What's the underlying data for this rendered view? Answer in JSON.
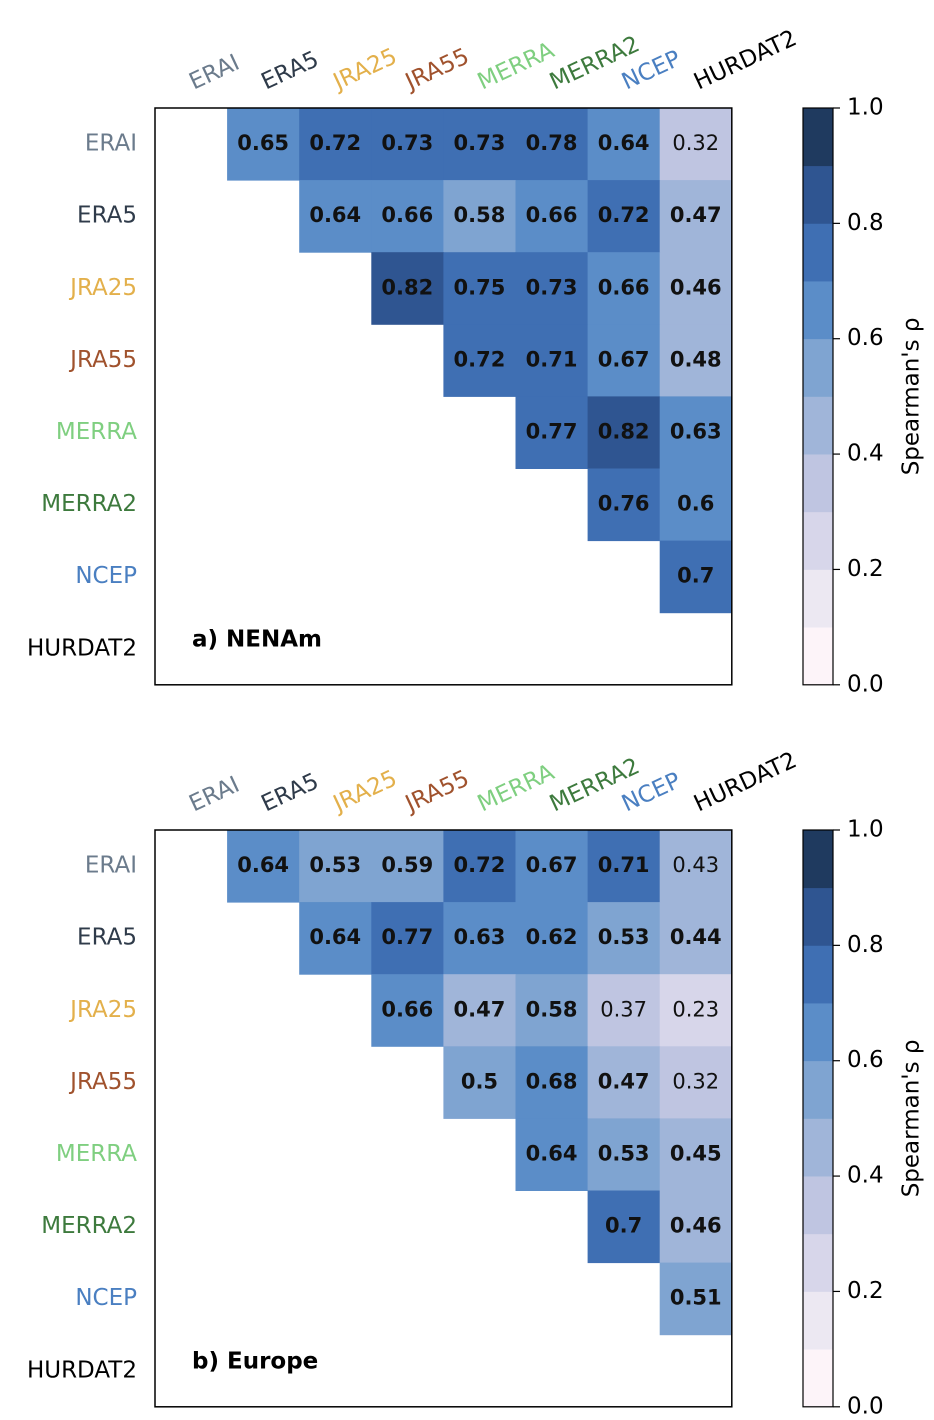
{
  "chart_data": [
    {
      "type": "heatmap",
      "title": "a) NENAm",
      "x": [
        "ERAI",
        "ERA5",
        "JRA25",
        "JRA55",
        "MERRA",
        "MERRA2",
        "NCEP",
        "HURDAT2"
      ],
      "y": [
        "ERAI",
        "ERA5",
        "JRA25",
        "JRA55",
        "MERRA",
        "MERRA2",
        "NCEP",
        "HURDAT2"
      ],
      "category_colors": [
        "#6b7b8c",
        "#2f3b4a",
        "#e3b04b",
        "#a0522d",
        "#7fcf80",
        "#3d7a3d",
        "#4a7fc1",
        "#000000"
      ],
      "values": [
        [
          null,
          0.65,
          0.72,
          0.73,
          0.73,
          0.78,
          0.64,
          0.32
        ],
        [
          null,
          null,
          0.64,
          0.66,
          0.58,
          0.66,
          0.72,
          0.47
        ],
        [
          null,
          null,
          null,
          0.82,
          0.75,
          0.73,
          0.66,
          0.46
        ],
        [
          null,
          null,
          null,
          null,
          0.72,
          0.71,
          0.67,
          0.48
        ],
        [
          null,
          null,
          null,
          null,
          null,
          0.77,
          0.82,
          0.63
        ],
        [
          null,
          null,
          null,
          null,
          null,
          null,
          0.76,
          0.6
        ],
        [
          null,
          null,
          null,
          null,
          null,
          null,
          null,
          0.7
        ],
        [
          null,
          null,
          null,
          null,
          null,
          null,
          null,
          null
        ]
      ],
      "colormap": [
        "#fdf4f9",
        "#ece8f2",
        "#d7d6ea",
        "#bfc5e1",
        "#a0b5d9",
        "#7fa4d1",
        "#5b8dc8",
        "#3f6fb3",
        "#2f5591",
        "#1f3a5f"
      ],
      "clim": [
        0,
        1
      ],
      "cticks": [
        {
          "value": 0,
          "label": "0.0"
        },
        0.2,
        0.4,
        0.6,
        0.8,
        {
          "value": 1,
          "label": "1.0"
        }
      ],
      "colorbar_label": "Spearman's ρ"
    },
    {
      "type": "heatmap",
      "title": "b) Europe",
      "x": [
        "ERAI",
        "ERA5",
        "JRA25",
        "JRA55",
        "MERRA",
        "MERRA2",
        "NCEP",
        "HURDAT2"
      ],
      "y": [
        "ERAI",
        "ERA5",
        "JRA25",
        "JRA55",
        "MERRA",
        "MERRA2",
        "NCEP",
        "HURDAT2"
      ],
      "category_colors": [
        "#6b7b8c",
        "#2f3b4a",
        "#e3b04b",
        "#a0522d",
        "#7fcf80",
        "#3d7a3d",
        "#4a7fc1",
        "#000000"
      ],
      "values": [
        [
          null,
          0.64,
          0.53,
          0.59,
          0.72,
          0.67,
          0.71,
          0.43
        ],
        [
          null,
          null,
          0.64,
          0.77,
          0.63,
          0.62,
          0.53,
          0.44
        ],
        [
          null,
          null,
          null,
          0.66,
          0.47,
          0.58,
          0.37,
          0.23
        ],
        [
          null,
          null,
          null,
          null,
          0.5,
          0.68,
          0.47,
          0.32
        ],
        [
          null,
          null,
          null,
          null,
          null,
          0.64,
          0.53,
          0.45
        ],
        [
          null,
          null,
          null,
          null,
          null,
          null,
          0.7,
          0.46
        ],
        [
          null,
          null,
          null,
          null,
          null,
          null,
          null,
          0.51
        ],
        [
          null,
          null,
          null,
          null,
          null,
          null,
          null,
          null
        ]
      ],
      "colormap": [
        "#fdf4f9",
        "#ece8f2",
        "#d7d6ea",
        "#bfc5e1",
        "#a0b5d9",
        "#7fa4d1",
        "#5b8dc8",
        "#3f6fb3",
        "#2f5591",
        "#1f3a5f"
      ],
      "clim": [
        0,
        1
      ],
      "cticks": [
        {
          "value": 0,
          "label": "0.0"
        },
        0.2,
        0.4,
        0.6,
        0.8,
        {
          "value": 1,
          "label": "1.0"
        }
      ],
      "colorbar_label": "Spearman's ρ"
    }
  ]
}
